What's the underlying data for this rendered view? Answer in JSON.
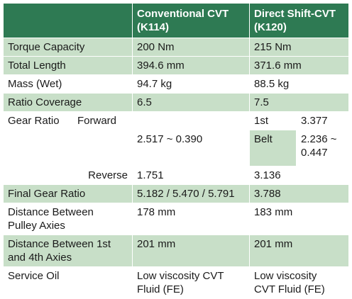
{
  "header": {
    "col1_line1": "Conventional CVT",
    "col1_line2": "(K114)",
    "col2_line1": "Direct Shift-CVT",
    "col2_line2": "(K120)"
  },
  "rows": {
    "torque": {
      "label": "Torque Capacity",
      "conv": "200 Nm",
      "direct": "215 Nm"
    },
    "length": {
      "label": "Total Length",
      "conv": "394.6 mm",
      "direct": "371.6 mm"
    },
    "mass": {
      "label": "Mass (Wet)",
      "conv": "94.7 kg",
      "direct": "88.5 kg"
    },
    "coverage": {
      "label": "Ratio Coverage",
      "conv": "6.5",
      "direct": "7.5"
    },
    "gear": {
      "label": "Gear Ratio",
      "forward_label": "Forward",
      "forward_conv": "2.517 ~ 0.390",
      "first_label": "1st",
      "first_value": "3.377",
      "belt_label": "Belt",
      "belt_value_line1": "2.236 ~",
      "belt_value_line2": "0.447",
      "reverse_label": "Reverse",
      "reverse_conv": "1.751",
      "reverse_direct": "3.136"
    },
    "final": {
      "label": "Final Gear Ratio",
      "conv": "5.182 / 5.470 / 5.791",
      "direct": "3.788"
    },
    "pulley": {
      "label_line1": "Distance Between",
      "label_line2": "Pulley Axies",
      "conv": "178 mm",
      "direct": "183 mm"
    },
    "axies": {
      "label_line1": "Distance Between 1st",
      "label_line2": "and 4th Axies",
      "conv": "201 mm",
      "direct": "201 mm"
    },
    "oil": {
      "label": "Service Oil",
      "conv_line1": "Low viscosity CVT",
      "conv_line2": "Fluid (FE)",
      "direct_line1": "Low viscosity",
      "direct_line2": "CVT Fluid (FE)"
    }
  },
  "colors": {
    "header": "#2e7a53",
    "shade": "#c8dfc8",
    "plain": "#ffffff"
  }
}
